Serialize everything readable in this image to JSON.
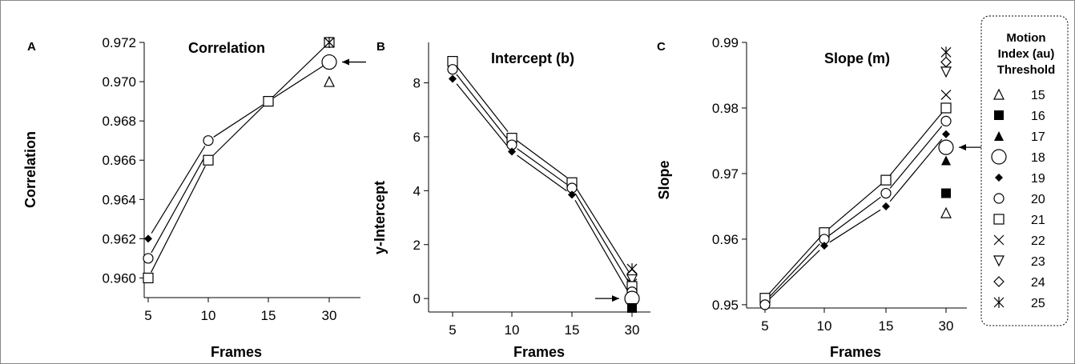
{
  "chart_data": [
    {
      "type": "line",
      "panel": "A",
      "title": "Correlation",
      "xlabel": "Frames",
      "ylabel": "Correlation",
      "x_categories": [
        "5",
        "10",
        "15",
        "30"
      ],
      "ylim": [
        0.959,
        0.972
      ],
      "yticks": [
        "0.960",
        "0.962",
        "0.964",
        "0.966",
        "0.968",
        "0.970",
        "0.972"
      ],
      "yticks_values": [
        0.96,
        0.962,
        0.964,
        0.966,
        0.968,
        0.97,
        0.972
      ],
      "lines": [
        {
          "points": [
            [
              0,
              0.962
            ],
            [
              1,
              0.967
            ]
          ]
        },
        {
          "points": [
            [
              0,
              0.961
            ],
            [
              1,
              0.9665
            ]
          ]
        },
        {
          "points": [
            [
              0,
              0.96
            ],
            [
              1,
              0.966
            ]
          ]
        },
        {
          "points": [
            [
              1,
              0.967
            ],
            [
              2,
              0.969
            ]
          ]
        },
        {
          "points": [
            [
              1,
              0.966
            ],
            [
              2,
              0.969
            ]
          ]
        },
        {
          "points": [
            [
              2,
              0.969
            ],
            [
              3,
              0.972
            ]
          ]
        },
        {
          "points": [
            [
              2,
              0.969
            ],
            [
              3,
              0.971
            ]
          ]
        }
      ],
      "markers": [
        {
          "x": 0,
          "y": 0.962,
          "marker": "diamond-filled"
        },
        {
          "x": 0,
          "y": 0.961,
          "marker": "circle"
        },
        {
          "x": 0,
          "y": 0.96,
          "marker": "square"
        },
        {
          "x": 1,
          "y": 0.967,
          "marker": "circle"
        },
        {
          "x": 1,
          "y": 0.966,
          "marker": "square"
        },
        {
          "x": 2,
          "y": 0.969,
          "marker": "square"
        },
        {
          "x": 3,
          "y": 0.97,
          "marker": "triangle"
        },
        {
          "x": 3,
          "y": 0.972,
          "marker": "square"
        },
        {
          "x": 3,
          "y": 0.972,
          "marker": "cross"
        },
        {
          "x": 3,
          "y": 0.972,
          "marker": "asterisk"
        },
        {
          "x": 3,
          "y": 0.971,
          "marker": "square-filled"
        },
        {
          "x": 3,
          "y": 0.971,
          "marker": "circle-large"
        }
      ],
      "arrow": {
        "x": 3,
        "y": 0.971,
        "side": "right"
      }
    },
    {
      "type": "line",
      "panel": "B",
      "title": "Intercept (b)",
      "xlabel": "Frames",
      "ylabel": "y-Intercept",
      "x_categories": [
        "5",
        "10",
        "15",
        "30"
      ],
      "ylim": [
        -0.5,
        9.5
      ],
      "yticks": [
        "0",
        "2",
        "4",
        "6",
        "8"
      ],
      "yticks_values": [
        0,
        2,
        4,
        6,
        8
      ],
      "lines": [
        {
          "points": [
            [
              0,
              8.8
            ],
            [
              1,
              6.0
            ],
            [
              2,
              4.35
            ],
            [
              3,
              0.8
            ]
          ]
        },
        {
          "points": [
            [
              0,
              8.5
            ],
            [
              1,
              5.7
            ],
            [
              2,
              4.1
            ],
            [
              3,
              0.4
            ]
          ]
        },
        {
          "points": [
            [
              0,
              8.15
            ],
            [
              1,
              5.45
            ],
            [
              2,
              3.85
            ],
            [
              3,
              0.0
            ]
          ]
        }
      ],
      "markers": [
        {
          "x": 0,
          "y": 8.8,
          "marker": "square"
        },
        {
          "x": 0,
          "y": 8.5,
          "marker": "circle"
        },
        {
          "x": 0,
          "y": 8.15,
          "marker": "diamond-filled"
        },
        {
          "x": 1,
          "y": 5.95,
          "marker": "square"
        },
        {
          "x": 1,
          "y": 5.7,
          "marker": "circle"
        },
        {
          "x": 1,
          "y": 5.45,
          "marker": "diamond-filled"
        },
        {
          "x": 2,
          "y": 4.3,
          "marker": "square"
        },
        {
          "x": 2,
          "y": 4.1,
          "marker": "circle"
        },
        {
          "x": 2,
          "y": 3.85,
          "marker": "diamond-filled"
        },
        {
          "x": 3,
          "y": 1.1,
          "marker": "asterisk"
        },
        {
          "x": 3,
          "y": 0.9,
          "marker": "diamond"
        },
        {
          "x": 3,
          "y": 0.7,
          "marker": "triangle-down"
        },
        {
          "x": 3,
          "y": 0.55,
          "marker": "cross"
        },
        {
          "x": 3,
          "y": 0.45,
          "marker": "square"
        },
        {
          "x": 3,
          "y": 0.25,
          "marker": "circle"
        },
        {
          "x": 3,
          "y": 0.05,
          "marker": "diamond-filled"
        },
        {
          "x": 3,
          "y": 0.0,
          "marker": "triangle"
        },
        {
          "x": 3,
          "y": 0.0,
          "marker": "circle-large"
        },
        {
          "x": 3,
          "y": -0.35,
          "marker": "square-filled"
        }
      ],
      "arrow": {
        "x": 3,
        "y": 0.0,
        "side": "left"
      }
    },
    {
      "type": "line",
      "panel": "C",
      "title": "Slope (m)",
      "xlabel": "Frames",
      "ylabel": "Slope",
      "x_categories": [
        "5",
        "10",
        "15",
        "30"
      ],
      "ylim": [
        0.9495,
        0.99
      ],
      "yticks": [
        "0.95",
        "0.96",
        "0.97",
        "0.98",
        "0.99"
      ],
      "yticks_values": [
        0.95,
        0.96,
        0.97,
        0.98,
        0.99
      ],
      "lines": [
        {
          "points": [
            [
              0,
              0.951
            ],
            [
              1,
              0.961
            ],
            [
              2,
              0.969
            ],
            [
              3,
              0.98
            ]
          ]
        },
        {
          "points": [
            [
              0,
              0.9505
            ],
            [
              1,
              0.96
            ],
            [
              2,
              0.967
            ],
            [
              3,
              0.978
            ]
          ]
        },
        {
          "points": [
            [
              0,
              0.9502
            ],
            [
              1,
              0.959
            ],
            [
              2,
              0.965
            ],
            [
              3,
              0.976
            ]
          ]
        }
      ],
      "markers": [
        {
          "x": 0,
          "y": 0.951,
          "marker": "square"
        },
        {
          "x": 0,
          "y": 0.95,
          "marker": "circle"
        },
        {
          "x": 1,
          "y": 0.961,
          "marker": "square"
        },
        {
          "x": 1,
          "y": 0.96,
          "marker": "circle"
        },
        {
          "x": 1,
          "y": 0.959,
          "marker": "diamond-filled"
        },
        {
          "x": 2,
          "y": 0.969,
          "marker": "square"
        },
        {
          "x": 2,
          "y": 0.967,
          "marker": "circle"
        },
        {
          "x": 2,
          "y": 0.965,
          "marker": "diamond-filled"
        },
        {
          "x": 3,
          "y": 0.9885,
          "marker": "asterisk"
        },
        {
          "x": 3,
          "y": 0.987,
          "marker": "diamond"
        },
        {
          "x": 3,
          "y": 0.9855,
          "marker": "triangle-down"
        },
        {
          "x": 3,
          "y": 0.982,
          "marker": "cross"
        },
        {
          "x": 3,
          "y": 0.98,
          "marker": "square"
        },
        {
          "x": 3,
          "y": 0.978,
          "marker": "circle"
        },
        {
          "x": 3,
          "y": 0.976,
          "marker": "diamond-filled"
        },
        {
          "x": 3,
          "y": 0.974,
          "marker": "circle-large"
        },
        {
          "x": 3,
          "y": 0.972,
          "marker": "triangle-filled"
        },
        {
          "x": 3,
          "y": 0.967,
          "marker": "square-filled"
        },
        {
          "x": 3,
          "y": 0.964,
          "marker": "triangle"
        }
      ],
      "arrow": {
        "x": 3,
        "y": 0.974,
        "side": "right"
      }
    }
  ],
  "legend": {
    "title_lines": [
      "Motion",
      "Index (au)",
      "Threshold"
    ],
    "placement": "right",
    "entries": [
      {
        "label": "15",
        "marker": "triangle"
      },
      {
        "label": "16",
        "marker": "square-filled"
      },
      {
        "label": "17",
        "marker": "triangle-filled"
      },
      {
        "label": "18",
        "marker": "circle-large"
      },
      {
        "label": "19",
        "marker": "diamond-filled"
      },
      {
        "label": "20",
        "marker": "circle"
      },
      {
        "label": "21",
        "marker": "square"
      },
      {
        "label": "22",
        "marker": "cross"
      },
      {
        "label": "23",
        "marker": "triangle-down"
      },
      {
        "label": "24",
        "marker": "diamond"
      },
      {
        "label": "25",
        "marker": "asterisk"
      }
    ]
  }
}
